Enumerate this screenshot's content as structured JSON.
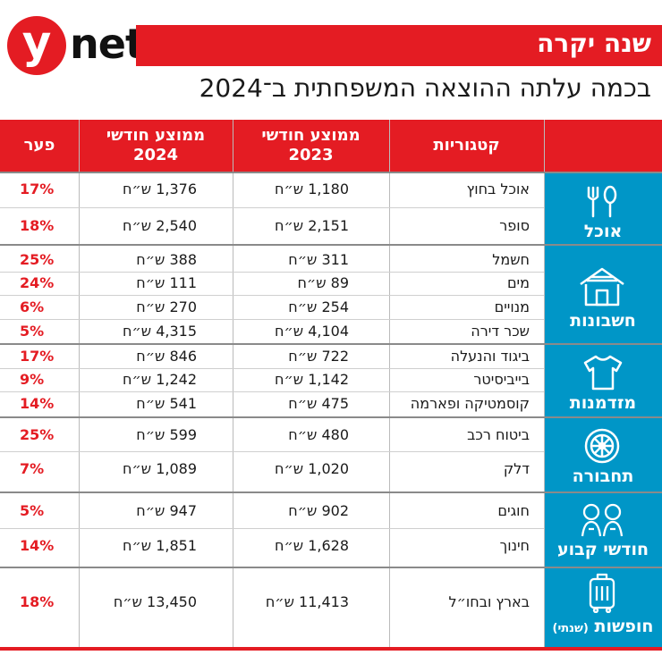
{
  "brand": {
    "logo_y": "y",
    "logo_net": "net"
  },
  "title": "שנה יקרה",
  "subtitle": "בכמה עלתה ההוצאה המשפחתית ב־2024",
  "colors": {
    "accent": "#e41c23",
    "category_bg": "#0096c7"
  },
  "headers": {
    "category": "קטגוריות",
    "avg2023_line1": "ממוצע חודשי",
    "avg2023_line2": "2023",
    "avg2024_line1": "ממוצע חודשי",
    "avg2024_line2": "2024",
    "gap": "פער"
  },
  "groups": [
    {
      "label": "אוכל",
      "icon": "cutlery-icon"
    },
    {
      "label": "חשבונות",
      "icon": "house-icon"
    },
    {
      "label": "מזדמנות",
      "icon": "tshirt-icon"
    },
    {
      "label": "תחבורה",
      "icon": "wheel-icon"
    },
    {
      "label": "חודשי קבוע",
      "icon": "children-icon"
    },
    {
      "label": "חופשות",
      "label_small": "(שנתי)",
      "icon": "suitcase-icon"
    }
  ],
  "chart_data": {
    "type": "table",
    "columns": [
      "קטגוריות",
      "ממוצע חודשי 2023",
      "ממוצע חודשי 2024",
      "פער"
    ],
    "rows": [
      {
        "group": "אוכל",
        "name": "אוכל בחוץ",
        "avg2023": "1,180 ש״ח",
        "avg2024": "1,376 ש״ח",
        "gap": "17%"
      },
      {
        "group": "אוכל",
        "name": "סופר",
        "avg2023": "2,151 ש״ח",
        "avg2024": "2,540 ש״ח",
        "gap": "18%"
      },
      {
        "group": "חשבונות",
        "name": "חשמל",
        "avg2023": "311 ש״ח",
        "avg2024": "388 ש״ח",
        "gap": "25%"
      },
      {
        "group": "חשבונות",
        "name": "מים",
        "avg2023": "89 ש״ח",
        "avg2024": "111 ש״ח",
        "gap": "24%"
      },
      {
        "group": "חשבונות",
        "name": "מנויים",
        "avg2023": "254 ש״ח",
        "avg2024": "270 ש״ח",
        "gap": "6%"
      },
      {
        "group": "חשבונות",
        "name": "שכר דירה",
        "avg2023": "4,104 ש״ח",
        "avg2024": "4,315 ש״ח",
        "gap": "5%"
      },
      {
        "group": "מזדמנות",
        "name": "ביגוד והנעלה",
        "avg2023": "722 ש״ח",
        "avg2024": "846 ש״ח",
        "gap": "17%"
      },
      {
        "group": "מזדמנות",
        "name": "בייביסיטר",
        "avg2023": "1,142 ש״ח",
        "avg2024": "1,242 ש״ח",
        "gap": "9%"
      },
      {
        "group": "מזדמנות",
        "name": "קוסמטיקה ופארמה",
        "avg2023": "475 ש״ח",
        "avg2024": "541 ש״ח",
        "gap": "14%"
      },
      {
        "group": "תחבורה",
        "name": "ביטוח רכב",
        "avg2023": "480 ש״ח",
        "avg2024": "599 ש״ח",
        "gap": "25%"
      },
      {
        "group": "תחבורה",
        "name": "דלק",
        "avg2023": "1,020 ש״ח",
        "avg2024": "1,089 ש״ח",
        "gap": "7%"
      },
      {
        "group": "חודשי קבוע",
        "name": "חוגים",
        "avg2023": "902 ש״ח",
        "avg2024": "947 ש״ח",
        "gap": "5%"
      },
      {
        "group": "חודשי קבוע",
        "name": "חינוך",
        "avg2023": "1,628 ש״ח",
        "avg2024": "1,851 ש״ח",
        "gap": "14%"
      },
      {
        "group": "חופשות",
        "name": "בארץ ובחו״ל",
        "avg2023": "11,413 ש״ח",
        "avg2024": "13,450 ש״ח",
        "gap": "18%"
      }
    ]
  }
}
